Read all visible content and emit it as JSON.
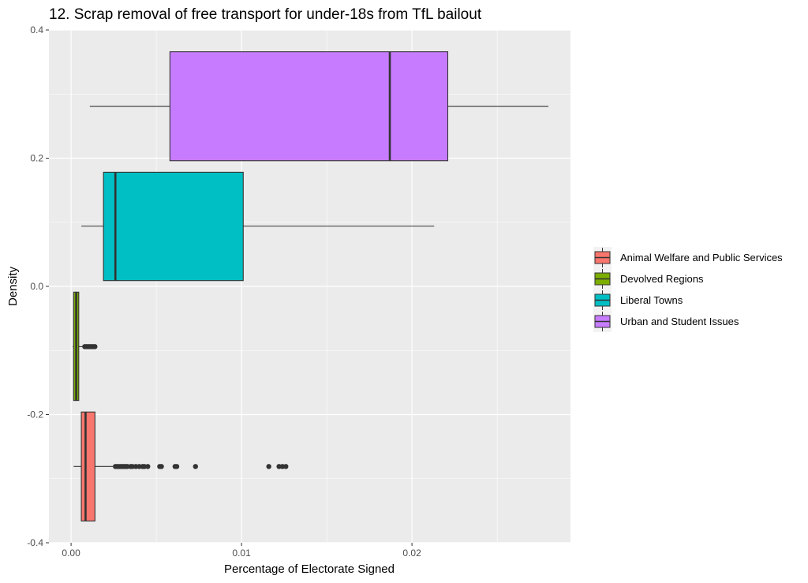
{
  "chart_data": {
    "type": "boxplot",
    "orientation": "horizontal",
    "title": "12. Scrap removal of free transport for under-18s from TfL bailout",
    "xlabel": "Percentage of Electorate Signed",
    "ylabel": "Density",
    "xlim": [
      -0.0013,
      0.0293
    ],
    "ylim": [
      -0.4,
      0.4
    ],
    "x_ticks": [
      {
        "value": 0.0,
        "label": "0.00"
      },
      {
        "value": 0.01,
        "label": "0.01"
      },
      {
        "value": 0.02,
        "label": "0.02"
      }
    ],
    "y_ticks": [
      {
        "value": 0.4,
        "label": "0.4"
      },
      {
        "value": 0.2,
        "label": "0.2"
      },
      {
        "value": 0.0,
        "label": "0.0"
      },
      {
        "value": -0.2,
        "label": "-0.2"
      },
      {
        "value": -0.4,
        "label": "-0.4"
      }
    ],
    "grid": true,
    "legend_position": "right",
    "series": [
      {
        "name": "Animal Welfare and Public Services",
        "color": "#F8766D",
        "y_center": -0.281,
        "y_low": -0.366,
        "y_high": -0.196,
        "whisker_low": 0.00015,
        "q1": 0.0006,
        "median": 0.00085,
        "q3": 0.0014,
        "whisker_high": 0.0025,
        "outliers": [
          0.0026,
          0.0027,
          0.0028,
          0.0029,
          0.003,
          0.0031,
          0.0032,
          0.0033,
          0.0035,
          0.0036,
          0.0038,
          0.004,
          0.0042,
          0.0043,
          0.0045,
          0.0052,
          0.0053,
          0.0061,
          0.0062,
          0.0073,
          0.0116,
          0.0122,
          0.0124,
          0.0126
        ]
      },
      {
        "name": "Devolved Regions",
        "color": "#7CAE00",
        "y_center": -0.094,
        "y_low": -0.178,
        "y_high": -0.009,
        "whisker_low": 0.0001,
        "q1": 0.00015,
        "median": 0.0003,
        "q3": 0.00045,
        "whisker_high": 0.0007,
        "outliers": [
          0.0008,
          0.0009,
          0.001,
          0.0011,
          0.0012,
          0.0013,
          0.0014
        ]
      },
      {
        "name": "Liberal Towns",
        "color": "#00BFC4",
        "y_center": 0.094,
        "y_low": 0.009,
        "y_high": 0.178,
        "whisker_low": 0.0006,
        "q1": 0.0019,
        "median": 0.0026,
        "q3": 0.0101,
        "whisker_high": 0.0213,
        "outliers": []
      },
      {
        "name": "Urban and Student Issues",
        "color": "#C77CFF",
        "y_center": 0.281,
        "y_low": 0.196,
        "y_high": 0.366,
        "whisker_low": 0.0011,
        "q1": 0.0058,
        "median": 0.0187,
        "q3": 0.0221,
        "whisker_high": 0.028,
        "outliers": []
      }
    ]
  }
}
